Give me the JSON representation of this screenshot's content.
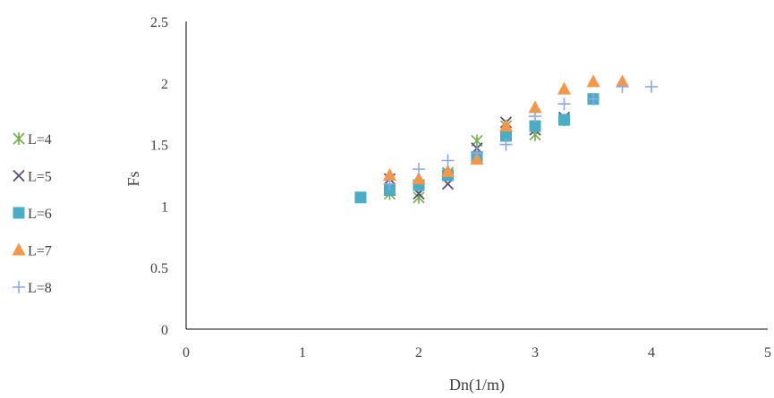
{
  "chart_data": {
    "type": "scatter",
    "title": "",
    "xlabel": "Dn(1/m)",
    "ylabel": "Fs",
    "xlim": [
      0,
      5
    ],
    "ylim": [
      0,
      2.5
    ],
    "xticks": [
      0,
      1,
      2,
      3,
      4,
      5
    ],
    "yticks": [
      0,
      0.5,
      1,
      1.5,
      2,
      2.5
    ],
    "xtick_labels": [
      "0",
      "1",
      "2",
      "3",
      "4",
      "5"
    ],
    "ytick_labels": [
      "0",
      "0.5",
      "1",
      "1.5",
      "2",
      "2.5"
    ],
    "grid": false,
    "legend_position": "left",
    "series": [
      {
        "name": "L=4",
        "marker": "star",
        "color": "#70AD47",
        "x": [
          1.75,
          2.0,
          2.25,
          2.5,
          2.75,
          3.0,
          3.25
        ],
        "y": [
          1.1,
          1.07,
          1.27,
          1.53,
          1.65,
          1.58,
          1.7
        ]
      },
      {
        "name": "L=5",
        "marker": "x",
        "color": "#5B4A7A",
        "x": [
          1.75,
          2.0,
          2.25,
          2.5,
          2.75,
          3.0,
          3.25
        ],
        "y": [
          1.22,
          1.1,
          1.18,
          1.47,
          1.68,
          1.62,
          1.72
        ]
      },
      {
        "name": "L=6",
        "marker": "square",
        "color": "#4BACC6",
        "x": [
          1.5,
          1.75,
          2.0,
          2.25,
          2.5,
          2.75,
          3.0,
          3.25,
          3.5
        ],
        "y": [
          1.07,
          1.13,
          1.17,
          1.25,
          1.4,
          1.57,
          1.65,
          1.7,
          1.87
        ]
      },
      {
        "name": "L=7",
        "marker": "triangle",
        "color": "#F79646",
        "x": [
          1.75,
          2.0,
          2.25,
          2.5,
          2.75,
          3.0,
          3.25,
          3.5,
          3.75
        ],
        "y": [
          1.25,
          1.22,
          1.28,
          1.38,
          1.65,
          1.8,
          1.95,
          2.01,
          2.01
        ]
      },
      {
        "name": "L=8",
        "marker": "plus",
        "color": "#8EA9DB",
        "x": [
          1.75,
          2.0,
          2.25,
          2.5,
          2.75,
          3.0,
          3.25,
          3.5,
          3.75,
          4.0
        ],
        "y": [
          1.18,
          1.3,
          1.37,
          1.43,
          1.5,
          1.73,
          1.83,
          1.87,
          1.97,
          1.97
        ]
      }
    ]
  }
}
